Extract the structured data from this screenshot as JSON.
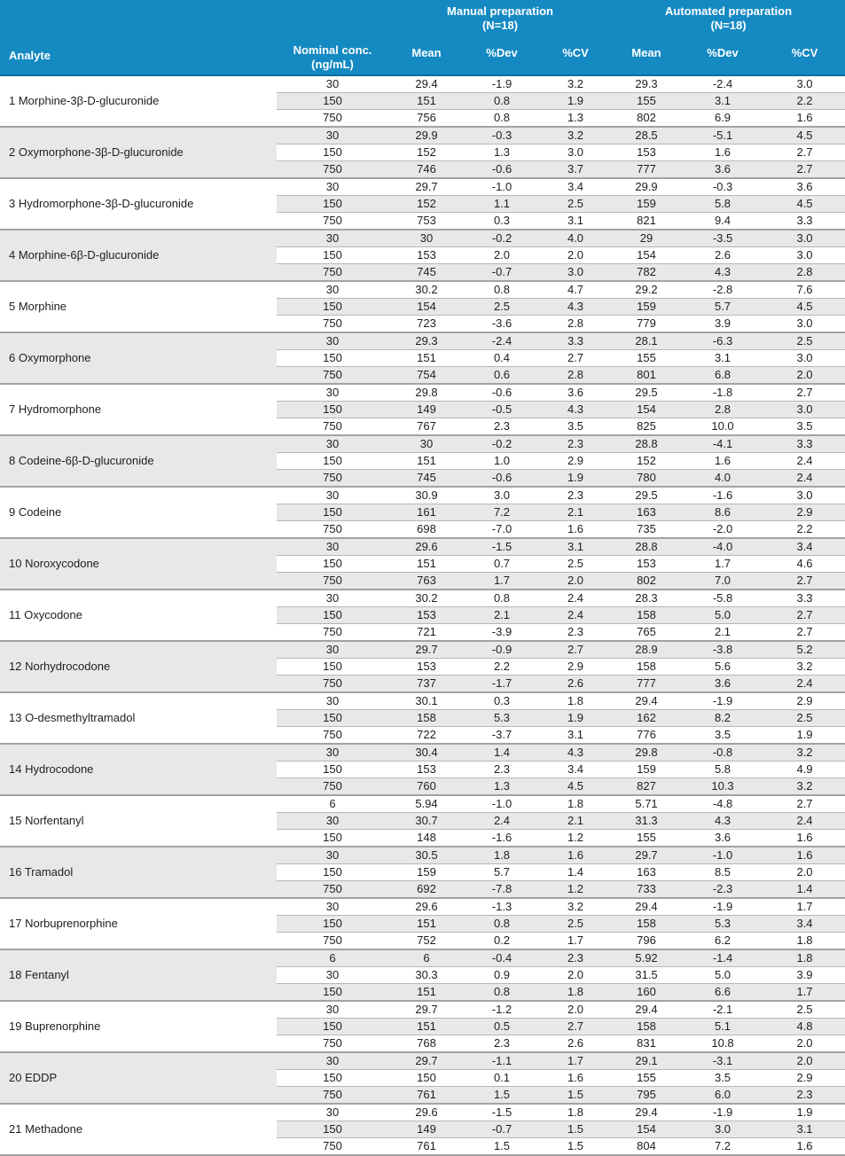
{
  "colors": {
    "header_bg": "#1489c2",
    "header_border": "#0c6f9e",
    "header_text": "#ffffff",
    "stripe": "#e8e8e8",
    "row_border": "#b7b7b7",
    "block_border": "#a3a3a3",
    "text": "#1e1e1e"
  },
  "table": {
    "header": {
      "analyte_label": "Analyte",
      "nominal_conc_line1": "Nominal conc.",
      "nominal_conc_line2": "(ng/mL)",
      "groups": [
        {
          "title": "Manual preparation",
          "n": "(N=18)"
        },
        {
          "title": "Automated preparation",
          "n": "(N=18)"
        }
      ],
      "sub_columns": [
        "Mean",
        "%Dev",
        "%CV",
        "Mean",
        "%Dev",
        "%CV"
      ]
    },
    "rows": [
      {
        "analyte": "1 Morphine-3β-D-glucuronide",
        "levels": [
          {
            "conc": "30",
            "manual": [
              "29.4",
              "-1.9",
              "3.2"
            ],
            "auto": [
              "29.3",
              "-2.4",
              "3.0"
            ]
          },
          {
            "conc": "150",
            "manual": [
              "151",
              "0.8",
              "1.9"
            ],
            "auto": [
              "155",
              "3.1",
              "2.2"
            ]
          },
          {
            "conc": "750",
            "manual": [
              "756",
              "0.8",
              "1.3"
            ],
            "auto": [
              "802",
              "6.9",
              "1.6"
            ]
          }
        ]
      },
      {
        "analyte": "2 Oxymorphone-3β-D-glucuronide",
        "levels": [
          {
            "conc": "30",
            "manual": [
              "29.9",
              "-0.3",
              "3.2"
            ],
            "auto": [
              "28.5",
              "-5.1",
              "4.5"
            ]
          },
          {
            "conc": "150",
            "manual": [
              "152",
              "1.3",
              "3.0"
            ],
            "auto": [
              "153",
              "1.6",
              "2.7"
            ]
          },
          {
            "conc": "750",
            "manual": [
              "746",
              "-0.6",
              "3.7"
            ],
            "auto": [
              "777",
              "3.6",
              "2.7"
            ]
          }
        ]
      },
      {
        "analyte": "3 Hydromorphone-3β-D-glucuronide",
        "levels": [
          {
            "conc": "30",
            "manual": [
              "29.7",
              "-1.0",
              "3.4"
            ],
            "auto": [
              "29.9",
              "-0.3",
              "3.6"
            ]
          },
          {
            "conc": "150",
            "manual": [
              "152",
              "1.1",
              "2.5"
            ],
            "auto": [
              "159",
              "5.8",
              "4.5"
            ]
          },
          {
            "conc": "750",
            "manual": [
              "753",
              "0.3",
              "3.1"
            ],
            "auto": [
              "821",
              "9.4",
              "3.3"
            ]
          }
        ]
      },
      {
        "analyte": "4 Morphine-6β-D-glucuronide",
        "levels": [
          {
            "conc": "30",
            "manual": [
              "30",
              "-0.2",
              "4.0"
            ],
            "auto": [
              "29",
              "-3.5",
              "3.0"
            ]
          },
          {
            "conc": "150",
            "manual": [
              "153",
              "2.0",
              "2.0"
            ],
            "auto": [
              "154",
              "2.6",
              "3.0"
            ]
          },
          {
            "conc": "750",
            "manual": [
              "745",
              "-0.7",
              "3.0"
            ],
            "auto": [
              "782",
              "4.3",
              "2.8"
            ]
          }
        ]
      },
      {
        "analyte": "5 Morphine",
        "levels": [
          {
            "conc": "30",
            "manual": [
              "30.2",
              "0.8",
              "4.7"
            ],
            "auto": [
              "29.2",
              "-2.8",
              "7.6"
            ]
          },
          {
            "conc": "150",
            "manual": [
              "154",
              "2.5",
              "4.3"
            ],
            "auto": [
              "159",
              "5.7",
              "4.5"
            ]
          },
          {
            "conc": "750",
            "manual": [
              "723",
              "-3.6",
              "2.8"
            ],
            "auto": [
              "779",
              "3.9",
              "3.0"
            ]
          }
        ]
      },
      {
        "analyte": "6 Oxymorphone",
        "levels": [
          {
            "conc": "30",
            "manual": [
              "29.3",
              "-2.4",
              "3.3"
            ],
            "auto": [
              "28.1",
              "-6.3",
              "2.5"
            ]
          },
          {
            "conc": "150",
            "manual": [
              "151",
              "0.4",
              "2.7"
            ],
            "auto": [
              "155",
              "3.1",
              "3.0"
            ]
          },
          {
            "conc": "750",
            "manual": [
              "754",
              "0.6",
              "2.8"
            ],
            "auto": [
              "801",
              "6.8",
              "2.0"
            ]
          }
        ]
      },
      {
        "analyte": "7 Hydromorphone",
        "levels": [
          {
            "conc": "30",
            "manual": [
              "29.8",
              "-0.6",
              "3.6"
            ],
            "auto": [
              "29.5",
              "-1.8",
              "2.7"
            ]
          },
          {
            "conc": "150",
            "manual": [
              "149",
              "-0.5",
              "4.3"
            ],
            "auto": [
              "154",
              "2.8",
              "3.0"
            ]
          },
          {
            "conc": "750",
            "manual": [
              "767",
              "2.3",
              "3.5"
            ],
            "auto": [
              "825",
              "10.0",
              "3.5"
            ]
          }
        ]
      },
      {
        "analyte": "8 Codeine-6β-D-glucuronide",
        "levels": [
          {
            "conc": "30",
            "manual": [
              "30",
              "-0.2",
              "2.3"
            ],
            "auto": [
              "28.8",
              "-4.1",
              "3.3"
            ]
          },
          {
            "conc": "150",
            "manual": [
              "151",
              "1.0",
              "2.9"
            ],
            "auto": [
              "152",
              "1.6",
              "2.4"
            ]
          },
          {
            "conc": "750",
            "manual": [
              "745",
              "-0.6",
              "1.9"
            ],
            "auto": [
              "780",
              "4.0",
              "2.4"
            ]
          }
        ]
      },
      {
        "analyte": "9 Codeine",
        "levels": [
          {
            "conc": "30",
            "manual": [
              "30.9",
              "3.0",
              "2.3"
            ],
            "auto": [
              "29.5",
              "-1.6",
              "3.0"
            ]
          },
          {
            "conc": "150",
            "manual": [
              "161",
              "7.2",
              "2.1"
            ],
            "auto": [
              "163",
              "8.6",
              "2.9"
            ]
          },
          {
            "conc": "750",
            "manual": [
              "698",
              "-7.0",
              "1.6"
            ],
            "auto": [
              "735",
              "-2.0",
              "2.2"
            ]
          }
        ]
      },
      {
        "analyte": "10 Noroxycodone",
        "levels": [
          {
            "conc": "30",
            "manual": [
              "29.6",
              "-1.5",
              "3.1"
            ],
            "auto": [
              "28.8",
              "-4.0",
              "3.4"
            ]
          },
          {
            "conc": "150",
            "manual": [
              "151",
              "0.7",
              "2.5"
            ],
            "auto": [
              "153",
              "1.7",
              "4.6"
            ]
          },
          {
            "conc": "750",
            "manual": [
              "763",
              "1.7",
              "2.0"
            ],
            "auto": [
              "802",
              "7.0",
              "2.7"
            ]
          }
        ]
      },
      {
        "analyte": "11 Oxycodone",
        "levels": [
          {
            "conc": "30",
            "manual": [
              "30.2",
              "0.8",
              "2.4"
            ],
            "auto": [
              "28.3",
              "-5.8",
              "3.3"
            ]
          },
          {
            "conc": "150",
            "manual": [
              "153",
              "2.1",
              "2.4"
            ],
            "auto": [
              "158",
              "5.0",
              "2.7"
            ]
          },
          {
            "conc": "750",
            "manual": [
              "721",
              "-3.9",
              "2.3"
            ],
            "auto": [
              "765",
              "2.1",
              "2.7"
            ]
          }
        ]
      },
      {
        "analyte": "12 Norhydrocodone",
        "levels": [
          {
            "conc": "30",
            "manual": [
              "29.7",
              "-0.9",
              "2.7"
            ],
            "auto": [
              "28.9",
              "-3.8",
              "5.2"
            ]
          },
          {
            "conc": "150",
            "manual": [
              "153",
              "2.2",
              "2.9"
            ],
            "auto": [
              "158",
              "5.6",
              "3.2"
            ]
          },
          {
            "conc": "750",
            "manual": [
              "737",
              "-1.7",
              "2.6"
            ],
            "auto": [
              "777",
              "3.6",
              "2.4"
            ]
          }
        ]
      },
      {
        "analyte": "13 O-desmethyltramadol",
        "levels": [
          {
            "conc": "30",
            "manual": [
              "30.1",
              "0.3",
              "1.8"
            ],
            "auto": [
              "29.4",
              "-1.9",
              "2.9"
            ]
          },
          {
            "conc": "150",
            "manual": [
              "158",
              "5.3",
              "1.9"
            ],
            "auto": [
              "162",
              "8.2",
              "2.5"
            ]
          },
          {
            "conc": "750",
            "manual": [
              "722",
              "-3.7",
              "3.1"
            ],
            "auto": [
              "776",
              "3.5",
              "1.9"
            ]
          }
        ]
      },
      {
        "analyte": "14 Hydrocodone",
        "levels": [
          {
            "conc": "30",
            "manual": [
              "30.4",
              "1.4",
              "4.3"
            ],
            "auto": [
              "29.8",
              "-0.8",
              "3.2"
            ]
          },
          {
            "conc": "150",
            "manual": [
              "153",
              "2.3",
              "3.4"
            ],
            "auto": [
              "159",
              "5.8",
              "4.9"
            ]
          },
          {
            "conc": "750",
            "manual": [
              "760",
              "1.3",
              "4.5"
            ],
            "auto": [
              "827",
              "10.3",
              "3.2"
            ]
          }
        ]
      },
      {
        "analyte": "15 Norfentanyl",
        "levels": [
          {
            "conc": "6",
            "manual": [
              "5.94",
              "-1.0",
              "1.8"
            ],
            "auto": [
              "5.71",
              "-4.8",
              "2.7"
            ]
          },
          {
            "conc": "30",
            "manual": [
              "30.7",
              "2.4",
              "2.1"
            ],
            "auto": [
              "31.3",
              "4.3",
              "2.4"
            ]
          },
          {
            "conc": "150",
            "manual": [
              "148",
              "-1.6",
              "1.2"
            ],
            "auto": [
              "155",
              "3.6",
              "1.6"
            ]
          }
        ]
      },
      {
        "analyte": "16 Tramadol",
        "levels": [
          {
            "conc": "30",
            "manual": [
              "30.5",
              "1.8",
              "1.6"
            ],
            "auto": [
              "29.7",
              "-1.0",
              "1.6"
            ]
          },
          {
            "conc": "150",
            "manual": [
              "159",
              "5.7",
              "1.4"
            ],
            "auto": [
              "163",
              "8.5",
              "2.0"
            ]
          },
          {
            "conc": "750",
            "manual": [
              "692",
              "-7.8",
              "1.2"
            ],
            "auto": [
              "733",
              "-2.3",
              "1.4"
            ]
          }
        ]
      },
      {
        "analyte": "17 Norbuprenorphine",
        "levels": [
          {
            "conc": "30",
            "manual": [
              "29.6",
              "-1.3",
              "3.2"
            ],
            "auto": [
              "29.4",
              "-1.9",
              "1.7"
            ]
          },
          {
            "conc": "150",
            "manual": [
              "151",
              "0.8",
              "2.5"
            ],
            "auto": [
              "158",
              "5.3",
              "3.4"
            ]
          },
          {
            "conc": "750",
            "manual": [
              "752",
              "0.2",
              "1.7"
            ],
            "auto": [
              "796",
              "6.2",
              "1.8"
            ]
          }
        ]
      },
      {
        "analyte": "18 Fentanyl",
        "levels": [
          {
            "conc": "6",
            "manual": [
              "6",
              "-0.4",
              "2.3"
            ],
            "auto": [
              "5.92",
              "-1.4",
              "1.8"
            ]
          },
          {
            "conc": "30",
            "manual": [
              "30.3",
              "0.9",
              "2.0"
            ],
            "auto": [
              "31.5",
              "5.0",
              "3.9"
            ]
          },
          {
            "conc": "150",
            "manual": [
              "151",
              "0.8",
              "1.8"
            ],
            "auto": [
              "160",
              "6.6",
              "1.7"
            ]
          }
        ]
      },
      {
        "analyte": "19 Buprenorphine",
        "levels": [
          {
            "conc": "30",
            "manual": [
              "29.7",
              "-1.2",
              "2.0"
            ],
            "auto": [
              "29.4",
              "-2.1",
              "2.5"
            ]
          },
          {
            "conc": "150",
            "manual": [
              "151",
              "0.5",
              "2.7"
            ],
            "auto": [
              "158",
              "5.1",
              "4.8"
            ]
          },
          {
            "conc": "750",
            "manual": [
              "768",
              "2.3",
              "2.6"
            ],
            "auto": [
              "831",
              "10.8",
              "2.0"
            ]
          }
        ]
      },
      {
        "analyte": "20 EDDP",
        "levels": [
          {
            "conc": "30",
            "manual": [
              "29.7",
              "-1.1",
              "1.7"
            ],
            "auto": [
              "29.1",
              "-3.1",
              "2.0"
            ]
          },
          {
            "conc": "150",
            "manual": [
              "150",
              "0.1",
              "1.6"
            ],
            "auto": [
              "155",
              "3.5",
              "2.9"
            ]
          },
          {
            "conc": "750",
            "manual": [
              "761",
              "1.5",
              "1.5"
            ],
            "auto": [
              "795",
              "6.0",
              "2.3"
            ]
          }
        ]
      },
      {
        "analyte": "21 Methadone",
        "levels": [
          {
            "conc": "30",
            "manual": [
              "29.6",
              "-1.5",
              "1.8"
            ],
            "auto": [
              "29.4",
              "-1.9",
              "1.9"
            ]
          },
          {
            "conc": "150",
            "manual": [
              "149",
              "-0.7",
              "1.5"
            ],
            "auto": [
              "154",
              "3.0",
              "3.1"
            ]
          },
          {
            "conc": "750",
            "manual": [
              "761",
              "1.5",
              "1.5"
            ],
            "auto": [
              "804",
              "7.2",
              "1.6"
            ]
          }
        ]
      }
    ]
  }
}
